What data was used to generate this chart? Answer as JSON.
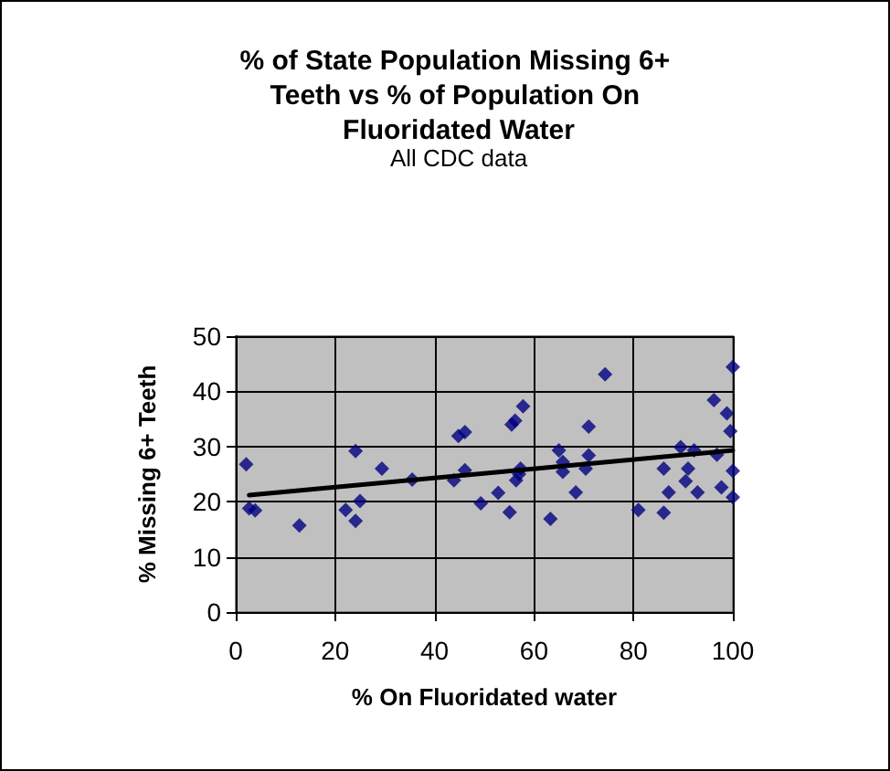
{
  "chart_data": {
    "type": "scatter",
    "title": "% of State Population Missing 6+ Teeth vs % of Population On Fluoridated Water",
    "subtitle": "All CDC data",
    "xlabel": "% On Fluoridated water",
    "ylabel": "% Missing 6+ Teeth",
    "series": [
      {
        "type": "scatter",
        "color": "#000080",
        "marker": "diamond",
        "x": [
          2.1,
          2.7,
          3.9,
          12.8,
          22.1,
          24.1,
          24.1,
          25,
          29.4,
          35.5,
          43.9,
          44.8,
          46.1,
          46.1,
          49.3,
          52.8,
          55.1,
          55.5,
          56.2,
          57.8,
          56.4,
          57.0,
          57.3,
          63.3,
          65.0,
          65.8,
          65.8,
          68.4,
          70.4,
          71.0,
          71.0,
          74.3,
          81.0,
          86.1,
          86.1,
          87.1,
          89.5,
          91.0,
          90.5,
          92.2,
          92.9,
          96.2,
          96.8,
          97.7,
          98.8,
          99.5,
          100,
          100,
          100
        ],
        "values": [
          26.8,
          18.8,
          18.4,
          15.7,
          18.5,
          29.2,
          16.5,
          20.1,
          26,
          24,
          23.9,
          31.9,
          32.6,
          25.7,
          19.7,
          21.6,
          18.1,
          34.0,
          34.7,
          37.3,
          23.9,
          25.0,
          26.0,
          16.9,
          29.3,
          25.4,
          27.2,
          21.7,
          26.0,
          28.4,
          33.6,
          43.1,
          18.5,
          26.0,
          18.0,
          21.7,
          29.9,
          26.0,
          23.7,
          29.3,
          21.7,
          38.4,
          28.5,
          22.6,
          36.0,
          32.8,
          44.4,
          25.6,
          20.8
        ]
      },
      {
        "type": "line",
        "color": "#000000",
        "marker": "none",
        "x": [
          2.7,
          100
        ],
        "values": [
          21.2,
          29.3
        ]
      }
    ],
    "xlim": [
      0,
      100
    ],
    "xticks": [
      0,
      20,
      40,
      60,
      80,
      100
    ],
    "ylim": [
      0,
      50
    ],
    "yticks": [
      0,
      10,
      20,
      30,
      40,
      50
    ],
    "grid": true
  }
}
